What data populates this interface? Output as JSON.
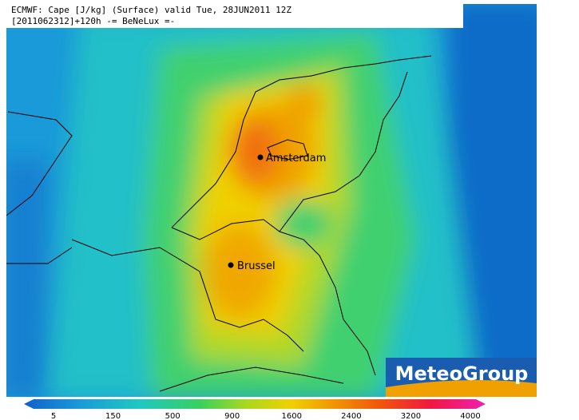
{
  "header": {
    "line1": "ECMWF: Cape [J/kg] (Surface) valid Tue, 28JUN2011 12Z",
    "line2": "[2011062312]+120h -= BeNeLux =-"
  },
  "cities": [
    {
      "label": "Amsterdam"
    },
    {
      "label": "Brussel"
    }
  ],
  "logo": "MeteoGroup",
  "colorbar": {
    "ticks": [
      5,
      150,
      500,
      900,
      1600,
      2400,
      3200,
      4000
    ]
  }
}
